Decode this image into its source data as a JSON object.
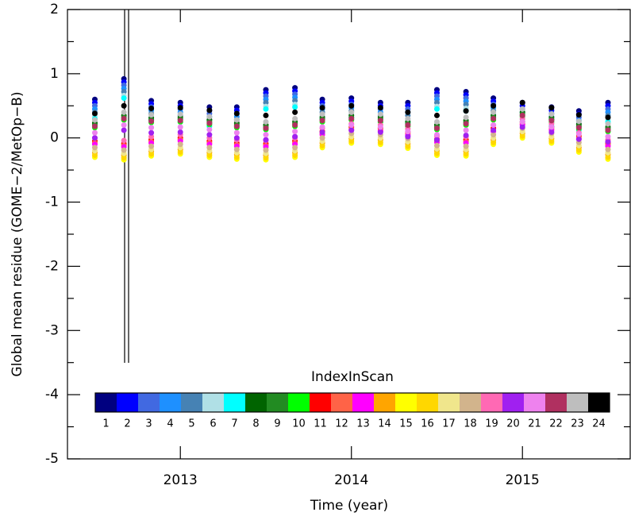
{
  "chart_data": {
    "type": "scatter",
    "x_label": "Time (year)",
    "y_label": "Global mean residue (GOME−2/MetOp−B)",
    "legend_title": "IndexInScan",
    "xlim": [
      2012.34,
      2015.63
    ],
    "xticks": [
      2013,
      2014,
      2015
    ],
    "ylim": [
      -5,
      2
    ],
    "yticks": [
      -5,
      -4,
      -3,
      -2,
      -1,
      0,
      1,
      2
    ],
    "x": [
      2012.5,
      2012.67,
      2012.83,
      2013.0,
      2013.17,
      2013.33,
      2013.5,
      2013.67,
      2013.83,
      2014.0,
      2014.17,
      2014.33,
      2014.5,
      2014.67,
      2014.83,
      2015.0,
      2015.17,
      2015.33,
      2015.5
    ],
    "series": [
      {
        "name": "1",
        "color": "#000080",
        "values": [
          0.6,
          0.92,
          0.58,
          0.55,
          0.48,
          0.48,
          0.75,
          0.78,
          0.6,
          0.62,
          0.55,
          0.55,
          0.75,
          0.72,
          0.62,
          0.55,
          0.48,
          0.42,
          0.55
        ]
      },
      {
        "name": "2",
        "color": "#0000ff",
        "values": [
          0.55,
          0.87,
          0.53,
          0.5,
          0.43,
          0.43,
          0.7,
          0.73,
          0.55,
          0.57,
          0.5,
          0.5,
          0.7,
          0.67,
          0.57,
          0.5,
          0.43,
          0.37,
          0.5
        ]
      },
      {
        "name": "3",
        "color": "#4169e1",
        "values": [
          0.5,
          0.82,
          0.48,
          0.45,
          0.38,
          0.38,
          0.65,
          0.68,
          0.5,
          0.52,
          0.45,
          0.45,
          0.65,
          0.62,
          0.52,
          0.45,
          0.38,
          0.32,
          0.45
        ]
      },
      {
        "name": "4",
        "color": "#1e90ff",
        "values": [
          0.45,
          0.77,
          0.43,
          0.4,
          0.33,
          0.33,
          0.6,
          0.63,
          0.45,
          0.47,
          0.4,
          0.4,
          0.6,
          0.57,
          0.47,
          0.4,
          0.33,
          0.27,
          0.4
        ]
      },
      {
        "name": "5",
        "color": "#4682b4",
        "values": [
          0.4,
          0.72,
          0.38,
          0.35,
          0.28,
          0.28,
          0.55,
          0.58,
          0.4,
          0.42,
          0.35,
          0.35,
          0.55,
          0.52,
          0.42,
          0.35,
          0.28,
          0.22,
          0.35
        ]
      },
      {
        "name": "6",
        "color": "#b0e0e6",
        "values": [
          0.34,
          0.66,
          0.32,
          0.29,
          0.22,
          0.22,
          0.49,
          0.52,
          0.34,
          0.36,
          0.29,
          0.29,
          0.49,
          0.46,
          0.36,
          0.29,
          0.22,
          0.16,
          0.29
        ]
      },
      {
        "name": "7",
        "color": "#00ffff",
        "values": [
          0.3,
          0.62,
          0.28,
          0.25,
          0.18,
          0.18,
          0.45,
          0.48,
          0.3,
          0.32,
          0.25,
          0.25,
          0.45,
          0.42,
          0.32,
          0.25,
          0.18,
          0.12,
          0.25
        ]
      },
      {
        "name": "8",
        "color": "#006400",
        "values": [
          0.23,
          0.35,
          0.31,
          0.32,
          0.28,
          0.23,
          0.2,
          0.25,
          0.32,
          0.35,
          0.32,
          0.25,
          0.2,
          0.27,
          0.35,
          0.4,
          0.32,
          0.21,
          0.17
        ]
      },
      {
        "name": "9",
        "color": "#228b22",
        "values": [
          0.2,
          0.32,
          0.28,
          0.29,
          0.25,
          0.2,
          0.17,
          0.22,
          0.29,
          0.32,
          0.29,
          0.22,
          0.17,
          0.24,
          0.32,
          0.37,
          0.29,
          0.18,
          0.14
        ]
      },
      {
        "name": "10",
        "color": "#00ff00",
        "values": [
          0.16,
          0.28,
          0.24,
          0.25,
          0.21,
          0.16,
          0.13,
          0.18,
          0.25,
          0.28,
          0.25,
          0.18,
          0.13,
          0.2,
          0.28,
          0.33,
          0.25,
          0.14,
          0.1
        ]
      },
      {
        "name": "11",
        "color": "#ff0000",
        "values": [
          -0.05,
          -0.09,
          -0.03,
          0.0,
          -0.05,
          -0.08,
          -0.09,
          -0.05,
          0.1,
          0.17,
          0.15,
          0.09,
          -0.02,
          -0.03,
          0.15,
          0.25,
          0.17,
          0.03,
          -0.08
        ]
      },
      {
        "name": "12",
        "color": "#ff6347",
        "values": [
          -0.08,
          -0.12,
          -0.06,
          -0.03,
          -0.08,
          -0.11,
          -0.12,
          -0.08,
          0.07,
          0.14,
          0.12,
          0.06,
          -0.05,
          -0.06,
          0.12,
          0.22,
          0.14,
          0.0,
          -0.11
        ]
      },
      {
        "name": "13",
        "color": "#ff00ff",
        "values": [
          -0.1,
          -0.14,
          -0.08,
          -0.05,
          -0.1,
          -0.13,
          -0.14,
          -0.1,
          0.05,
          0.12,
          0.1,
          0.04,
          -0.07,
          -0.08,
          0.1,
          0.2,
          0.12,
          -0.02,
          -0.13
        ]
      },
      {
        "name": "14",
        "color": "#ffa500",
        "values": [
          -0.23,
          -0.27,
          -0.21,
          -0.18,
          -0.23,
          -0.26,
          -0.27,
          -0.23,
          -0.08,
          -0.01,
          -0.03,
          -0.09,
          -0.2,
          -0.21,
          -0.03,
          0.07,
          -0.01,
          -0.15,
          -0.26
        ]
      },
      {
        "name": "15",
        "color": "#ffff00",
        "values": [
          -0.3,
          -0.34,
          -0.28,
          -0.25,
          -0.3,
          -0.33,
          -0.34,
          -0.3,
          -0.15,
          -0.08,
          -0.1,
          -0.16,
          -0.27,
          -0.28,
          -0.1,
          0.0,
          -0.08,
          -0.22,
          -0.33
        ]
      },
      {
        "name": "16",
        "color": "#ffd700",
        "values": [
          -0.27,
          -0.31,
          -0.25,
          -0.22,
          -0.27,
          -0.3,
          -0.31,
          -0.27,
          -0.12,
          -0.05,
          -0.07,
          -0.13,
          -0.24,
          -0.25,
          -0.07,
          0.03,
          -0.05,
          -0.19,
          -0.3
        ]
      },
      {
        "name": "17",
        "color": "#f0e68c",
        "values": [
          -0.2,
          -0.24,
          -0.18,
          -0.15,
          -0.2,
          -0.23,
          -0.24,
          -0.2,
          -0.05,
          0.02,
          0.0,
          -0.06,
          -0.17,
          -0.18,
          0.0,
          0.1,
          0.02,
          -0.12,
          -0.23
        ]
      },
      {
        "name": "18",
        "color": "#d2b48c",
        "values": [
          -0.15,
          -0.19,
          -0.13,
          -0.1,
          -0.15,
          -0.18,
          -0.19,
          -0.15,
          0.0,
          0.07,
          0.05,
          -0.01,
          -0.12,
          -0.13,
          0.05,
          0.15,
          0.07,
          -0.07,
          -0.18
        ]
      },
      {
        "name": "19",
        "color": "#ff69b4",
        "values": [
          0.0,
          -0.04,
          0.02,
          0.05,
          0.0,
          -0.03,
          -0.04,
          0.0,
          0.15,
          0.22,
          0.2,
          0.14,
          0.03,
          0.02,
          0.2,
          0.3,
          0.22,
          0.08,
          -0.03
        ]
      },
      {
        "name": "20",
        "color": "#a020f0",
        "values": [
          0.0,
          0.12,
          0.08,
          0.09,
          0.05,
          0.0,
          -0.03,
          0.02,
          0.09,
          0.12,
          0.09,
          0.02,
          -0.03,
          0.04,
          0.12,
          0.17,
          0.09,
          -0.02,
          -0.06
        ]
      },
      {
        "name": "21",
        "color": "#ee82ee",
        "values": [
          0.08,
          0.2,
          0.16,
          0.17,
          0.13,
          0.08,
          0.05,
          0.1,
          0.17,
          0.2,
          0.17,
          0.1,
          0.05,
          0.12,
          0.2,
          0.25,
          0.17,
          0.06,
          0.02
        ]
      },
      {
        "name": "22",
        "color": "#b03060",
        "values": [
          0.18,
          0.3,
          0.26,
          0.27,
          0.23,
          0.18,
          0.15,
          0.2,
          0.27,
          0.3,
          0.27,
          0.2,
          0.15,
          0.22,
          0.3,
          0.35,
          0.27,
          0.16,
          0.12
        ]
      },
      {
        "name": "23",
        "color": "#bebebe",
        "values": [
          0.28,
          0.4,
          0.36,
          0.37,
          0.33,
          0.28,
          0.25,
          0.3,
          0.37,
          0.4,
          0.37,
          0.3,
          0.25,
          0.32,
          0.4,
          0.45,
          0.37,
          0.26,
          0.22
        ]
      },
      {
        "name": "24",
        "color": "#000000",
        "values": [
          0.38,
          0.5,
          0.46,
          0.47,
          0.43,
          0.38,
          0.35,
          0.4,
          0.47,
          0.5,
          0.47,
          0.4,
          0.35,
          0.42,
          0.5,
          0.55,
          0.47,
          0.36,
          0.32
        ]
      }
    ]
  }
}
